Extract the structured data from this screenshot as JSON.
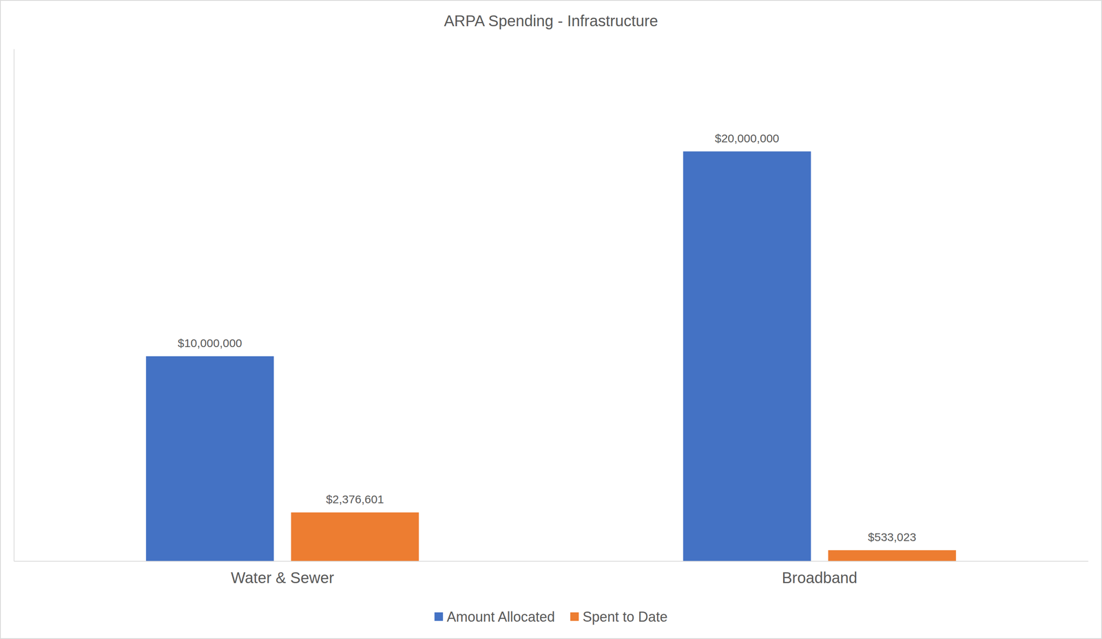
{
  "chart_data": {
    "type": "bar",
    "title": "ARPA Spending - Infrastructure",
    "categories": [
      "Water & Sewer",
      "Broadband"
    ],
    "series": [
      {
        "name": "Amount Allocated",
        "color": "#4472c4",
        "values": [
          10000000,
          20000000
        ],
        "value_labels": [
          "$10,000,000",
          "$20,000,000"
        ]
      },
      {
        "name": "Spent to Date",
        "color": "#ed7d31",
        "values": [
          2376601,
          533023
        ],
        "value_labels": [
          "$2,376,601",
          "$533,023"
        ]
      }
    ],
    "ylim": [
      0,
      25000000
    ],
    "data_labels": true,
    "tick_labels": "x",
    "legend": "bottom",
    "grid": false
  }
}
